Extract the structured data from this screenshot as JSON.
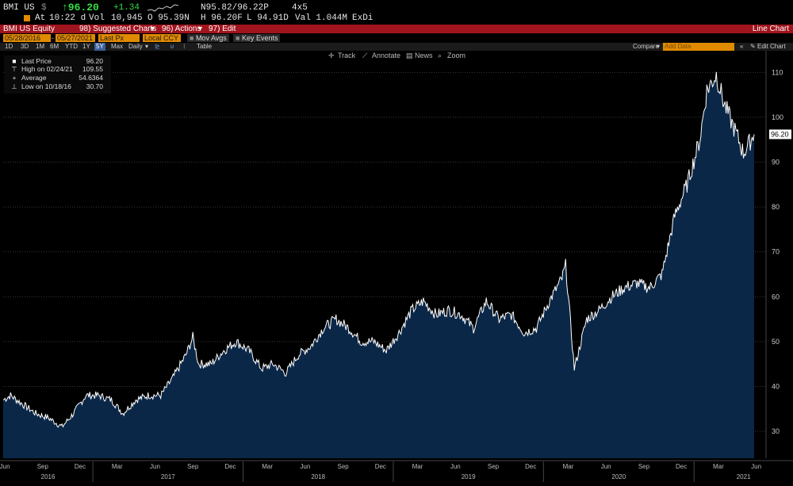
{
  "quote": {
    "ticker": "BMI US",
    "currency_icon": "$",
    "price": "↑96.20",
    "change": "+1.34",
    "spread": "N95.82/96.22P",
    "size": "4x5",
    "at_label": "At",
    "time": "10:22 d",
    "vol_label": "Vol",
    "volume": "10,945",
    "open": "O 95.39N",
    "high": "H 96.20F",
    "low": "L 94.91D",
    "val": "Val 1.044M",
    "exdi": "ExDi"
  },
  "header": {
    "security": "BMI US Equity",
    "suggested": "98) Suggested Charts",
    "actions": "96) Actions",
    "edit": "97) Edit",
    "chart_type": "Line Chart"
  },
  "fields": {
    "start_date": "05/28/2016",
    "end_date": "05/27/2021",
    "price_field": "Last Px",
    "currency": "Local CCY",
    "mov_avgs": "Mov Avgs",
    "key_events": "Key Events"
  },
  "ranges": {
    "items": [
      "1D",
      "3D",
      "1M",
      "6M",
      "YTD",
      "1Y",
      "5Y",
      "Max"
    ],
    "selected": "5Y",
    "frequency": "Daily",
    "table": "Table",
    "compare": "Compare",
    "add_data": "Add Data",
    "edit_chart": "Edit Chart"
  },
  "toolbar": {
    "track": "Track",
    "annotate": "Annotate",
    "news": "News",
    "zoom": "Zoom"
  },
  "legend": {
    "last_price_label": "Last Price",
    "last_price": "96.20",
    "high_label": "High on 02/24/21",
    "high": "109.55",
    "average_label": "Average",
    "average": "54.6364",
    "low_label": "Low on 10/18/16",
    "low": "30.70"
  },
  "colors": {
    "line": "#ffffff",
    "area": "#0b2748",
    "header": "#a0141e",
    "field": "#e08a00",
    "up": "#33dd44"
  },
  "chart_data": {
    "type": "area",
    "last_value_label": "96.20",
    "ylim": [
      24,
      112
    ],
    "yticks": [
      30,
      40,
      50,
      60,
      70,
      80,
      90,
      100,
      110
    ],
    "months": [
      "Jun",
      "Sep",
      "Dec",
      "Mar",
      "Jun",
      "Sep",
      "Dec",
      "Mar",
      "Jun",
      "Sep",
      "Dec",
      "Mar",
      "Jun",
      "Sep",
      "Dec",
      "Mar",
      "Jun",
      "Sep",
      "Dec",
      "Mar",
      "Jun"
    ],
    "years": [
      "2016",
      "2017",
      "2018",
      "2019",
      "2020",
      "2021"
    ],
    "x": [
      "2016-05-28",
      "2016-06-15",
      "2016-07-15",
      "2016-08-15",
      "2016-09-15",
      "2016-10-18",
      "2016-11-15",
      "2016-12-15",
      "2017-01-15",
      "2017-02-15",
      "2017-03-15",
      "2017-04-15",
      "2017-05-15",
      "2017-06-15",
      "2017-07-15",
      "2017-08-15",
      "2017-09-01",
      "2017-09-15",
      "2017-10-15",
      "2017-11-15",
      "2017-12-15",
      "2018-01-15",
      "2018-02-15",
      "2018-03-15",
      "2018-04-15",
      "2018-05-15",
      "2018-06-15",
      "2018-07-15",
      "2018-08-15",
      "2018-09-15",
      "2018-10-15",
      "2018-11-15",
      "2018-12-15",
      "2019-01-15",
      "2019-02-15",
      "2019-03-15",
      "2019-04-15",
      "2019-05-15",
      "2019-06-15",
      "2019-07-15",
      "2019-08-15",
      "2019-09-15",
      "2019-10-15",
      "2019-11-15",
      "2019-12-15",
      "2020-01-15",
      "2020-02-15",
      "2020-02-24",
      "2020-03-16",
      "2020-04-15",
      "2020-05-15",
      "2020-06-15",
      "2020-07-15",
      "2020-08-15",
      "2020-09-15",
      "2020-10-15",
      "2020-11-15",
      "2020-12-15",
      "2021-01-15",
      "2021-02-01",
      "2021-02-24",
      "2021-03-15",
      "2021-04-15",
      "2021-05-01",
      "2021-05-27"
    ],
    "y": [
      37,
      38,
      36,
      34,
      33,
      31,
      34,
      38,
      38,
      37,
      34,
      37,
      38,
      38,
      42,
      47,
      51,
      45,
      45,
      48,
      50,
      48,
      44,
      45,
      43,
      47,
      49,
      53,
      55,
      53,
      50,
      50,
      48,
      52,
      57,
      59,
      56,
      57,
      56,
      53,
      59,
      55,
      56,
      52,
      53,
      59,
      64,
      67,
      44,
      55,
      57,
      60,
      62,
      63,
      62,
      65,
      78,
      85,
      95,
      106,
      109.5,
      103,
      96,
      92,
      96.2
    ]
  }
}
